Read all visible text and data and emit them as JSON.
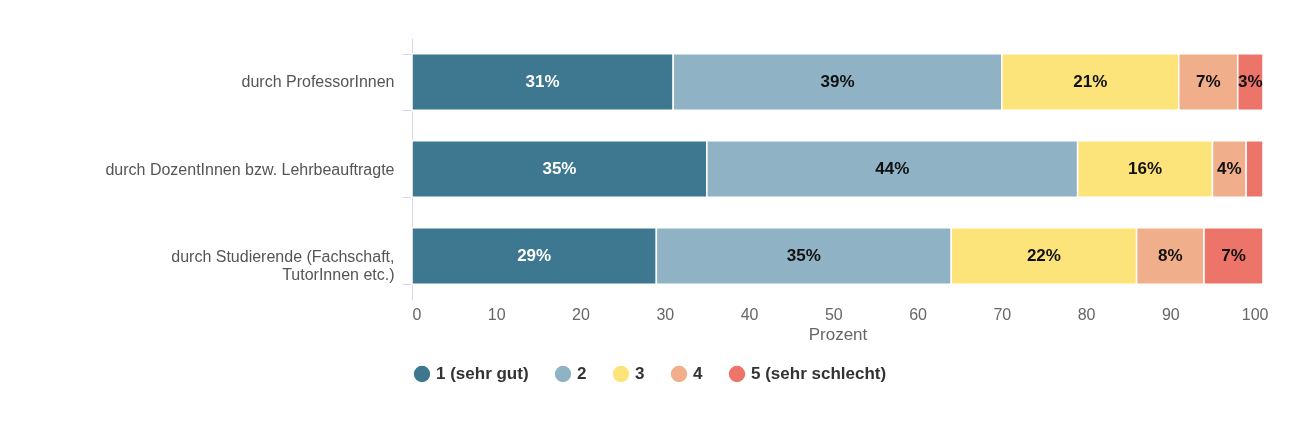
{
  "chart_data": {
    "type": "bar",
    "orientation": "horizontal",
    "stacked": true,
    "xlabel": "Prozent",
    "categories": [
      "durch ProfessorInnen",
      "durch DozentInnen bzw. Lehrbeauftragte",
      "durch Studierende (Fachschaft, TutorInnen etc.)"
    ],
    "series": [
      {
        "name": "1 (sehr gut)",
        "color": "#3d7790",
        "values": [
          31,
          35,
          29
        ],
        "value_labels": [
          "31%",
          "35%",
          "29%"
        ]
      },
      {
        "name": "2",
        "color": "#8fb3c4",
        "values": [
          39,
          44,
          35
        ],
        "value_labels": [
          "39%",
          "44%",
          "35%"
        ]
      },
      {
        "name": "3",
        "color": "#fde47a",
        "values": [
          21,
          16,
          22
        ],
        "value_labels": [
          "21%",
          "16%",
          "22%"
        ]
      },
      {
        "name": "4",
        "color": "#f0ae8a",
        "values": [
          7,
          4,
          8
        ],
        "value_labels": [
          "7%",
          "4%",
          "8%"
        ]
      },
      {
        "name": "5 (sehr schlecht)",
        "color": "#ec7468",
        "values": [
          3,
          2,
          7
        ],
        "value_labels": [
          "3%",
          null,
          "7%"
        ]
      }
    ],
    "xlim": [
      0,
      101
    ],
    "xticks": [
      0,
      10,
      20,
      30,
      40,
      50,
      60,
      70,
      80,
      90,
      100
    ],
    "grid": false,
    "legend": "bottom"
  }
}
